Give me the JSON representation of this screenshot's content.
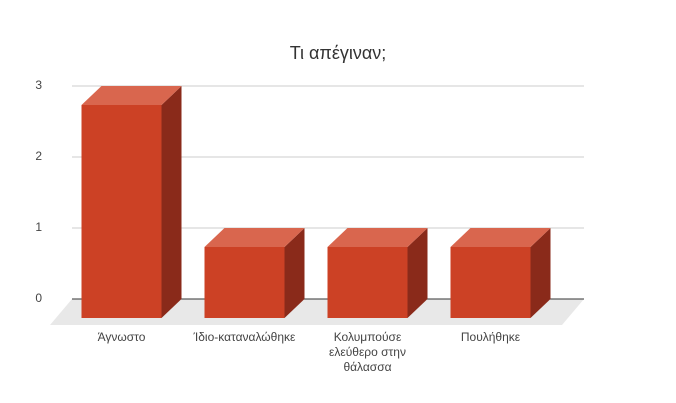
{
  "chart_data": {
    "type": "bar3d",
    "title": "Τι απέγιναν;",
    "categories": [
      "Άγνωστο",
      "Ίδιο-καταναλώθηκε",
      "Κολυμπούσε ελεύθερο στην θάλασσα",
      "Πουλήθηκε"
    ],
    "values": [
      3,
      1,
      1,
      1
    ],
    "color": "#cc4125",
    "ylim": [
      0,
      3
    ],
    "yticks": [
      0,
      1,
      2,
      3
    ],
    "grid": true
  }
}
